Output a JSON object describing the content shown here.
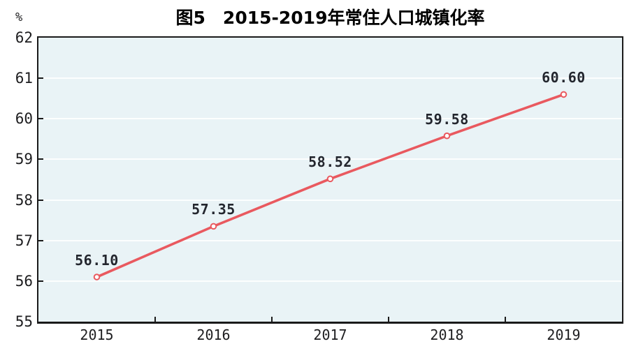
{
  "title": "图5　2015-2019年常住人口城镇化率",
  "y_axis": {
    "unit_label": "%",
    "tick_labels": [
      "62",
      "61",
      "60",
      "59",
      "58",
      "57",
      "56",
      "55"
    ]
  },
  "x_axis": {
    "tick_labels": [
      "2015",
      "2016",
      "2017",
      "2018",
      "2019"
    ]
  },
  "chart_data": {
    "type": "line",
    "title": "图5　2015-2019年常住人口城镇化率",
    "categories": [
      "2015",
      "2016",
      "2017",
      "2018",
      "2019"
    ],
    "values": [
      56.1,
      57.35,
      58.52,
      59.58,
      60.6
    ],
    "data_labels": [
      "56.10",
      "57.35",
      "58.52",
      "59.58",
      "60.60"
    ],
    "ylabel": "%",
    "ylim": [
      55,
      62
    ],
    "y_tick_step": 1,
    "grid": "horizontal",
    "legend": "none",
    "colors": {
      "line": "#e9595f",
      "marker_fill": "#ffffff",
      "plot_background": "#e9f3f6",
      "gridline": "rgba(255,255,255,0.85)",
      "axis": "#1a1a1a",
      "data_label_text": "#23262e",
      "axis_label_text": "#1d1d1f",
      "title_text": "#000000"
    }
  }
}
